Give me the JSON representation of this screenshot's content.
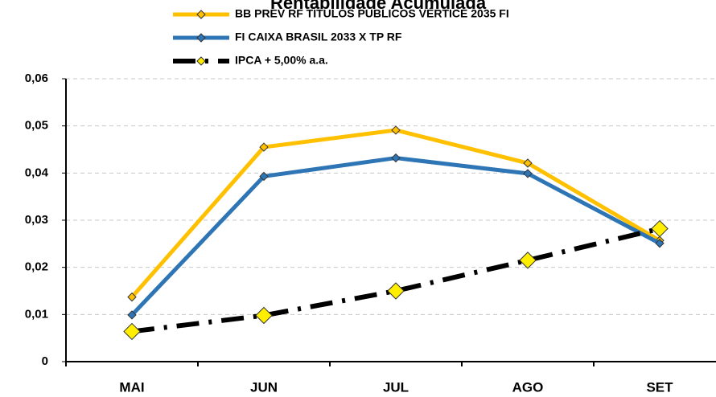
{
  "chart_data": {
    "type": "line",
    "title": "Rentabilidade Acumulada",
    "categories": [
      "MAI",
      "JUN",
      "JUL",
      "AGO",
      "SET"
    ],
    "series": [
      {
        "name": "BB PREV RF TÍTULOS PÚBLICOS VÉRTICE 2035 FI",
        "color": "#ffc000",
        "marker_color": "#ffc000",
        "line_style": "solid",
        "values": [
          0.0137,
          0.0455,
          0.0491,
          0.0421,
          0.0257
        ]
      },
      {
        "name": "FI CAIXA BRASIL 2033 X TP RF",
        "color": "#2e75b6",
        "marker_color": "#2e75b6",
        "line_style": "solid",
        "values": [
          0.0099,
          0.0393,
          0.0432,
          0.0399,
          0.0251
        ]
      },
      {
        "name": "IPCA + 5,00% a.a.",
        "color": "#000000",
        "marker_color": "#ffee00",
        "line_style": "dash-dot",
        "values": [
          0.0064,
          0.0098,
          0.015,
          0.0215,
          0.0282
        ]
      }
    ],
    "ylim": [
      0,
      0.06
    ],
    "yticks": [
      0,
      {
        "value": 0.01,
        "label": "0,01"
      },
      {
        "value": 0.02,
        "label": "0,02"
      },
      {
        "value": 0.03,
        "label": "0,03"
      },
      {
        "value": 0.04,
        "label": "0,04"
      },
      {
        "value": 0.05,
        "label": "0,05"
      },
      {
        "value": 0.06,
        "label": "0,06"
      }
    ],
    "grid": true
  }
}
